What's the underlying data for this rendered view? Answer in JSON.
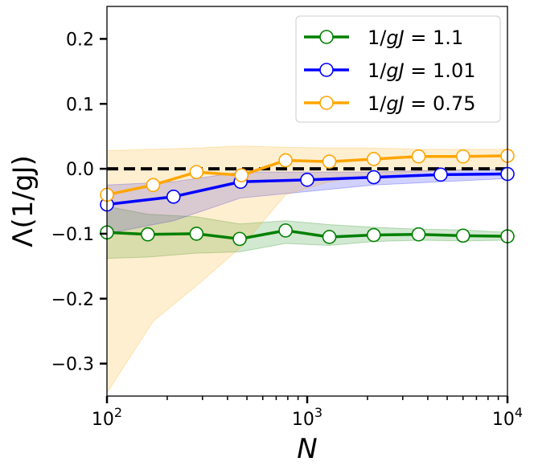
{
  "chart_data": {
    "type": "line",
    "title": "",
    "xlabel": "N",
    "ylabel": "Λ(1/gJ)",
    "x_scale": "log",
    "xlim": [
      100,
      10000
    ],
    "ylim": [
      -0.35,
      0.25
    ],
    "x_ticks": [
      100,
      1000,
      10000
    ],
    "x_tick_labels": [
      {
        "base": "10",
        "exp": "2"
      },
      {
        "base": "10",
        "exp": "3"
      },
      {
        "base": "10",
        "exp": "4"
      }
    ],
    "y_ticks": [
      0.2,
      0.1,
      0.0,
      -0.1,
      -0.2,
      -0.3
    ],
    "y_tick_labels": [
      "0.2",
      "0.1",
      "0.0",
      "−0.1",
      "−0.2",
      "−0.3"
    ],
    "grid": false,
    "legend_position": "top-right",
    "reference_line": {
      "y": 0.0,
      "style": "dashed",
      "color": "#000000"
    },
    "series": [
      {
        "name": "1/gJ = 1.1",
        "legend_parts": [
          "1/",
          "gJ",
          " = 1.1"
        ],
        "color": "#008000",
        "x": [
          100,
          160,
          280,
          460,
          780,
          1290,
          2150,
          3600,
          6000,
          10000
        ],
        "values": [
          -0.098,
          -0.101,
          -0.1,
          -0.108,
          -0.095,
          -0.105,
          -0.102,
          -0.101,
          -0.103,
          -0.104
        ],
        "band_upper": [
          -0.058,
          -0.07,
          -0.074,
          -0.085,
          -0.08,
          -0.086,
          -0.09,
          -0.093,
          -0.094,
          -0.098
        ],
        "band_lower": [
          -0.138,
          -0.136,
          -0.13,
          -0.128,
          -0.115,
          -0.118,
          -0.112,
          -0.11,
          -0.111,
          -0.11
        ]
      },
      {
        "name": "1/gJ = 1.01",
        "legend_parts": [
          "1/",
          "gJ",
          " = 1.01"
        ],
        "color": "#0000ff",
        "x": [
          100,
          215,
          465,
          1000,
          2150,
          4640,
          10000
        ],
        "values": [
          -0.055,
          -0.043,
          -0.02,
          -0.017,
          -0.013,
          -0.009,
          -0.008
        ],
        "band_upper": [
          -0.025,
          -0.02,
          -0.005,
          -0.005,
          -0.005,
          -0.002,
          -0.001
        ],
        "band_lower": [
          -0.1,
          -0.08,
          -0.045,
          -0.035,
          -0.025,
          -0.02,
          -0.015
        ]
      },
      {
        "name": "1/gJ = 0.75",
        "legend_parts": [
          "1/",
          "gJ",
          " = 0.75"
        ],
        "color": "#ffa500",
        "x": [
          100,
          170,
          280,
          470,
          780,
          1290,
          2150,
          3600,
          6000,
          10000
        ],
        "values": [
          -0.04,
          -0.025,
          -0.005,
          -0.01,
          0.013,
          0.011,
          0.015,
          0.019,
          0.019,
          0.02
        ],
        "band_upper": [
          0.028,
          0.03,
          0.032,
          0.035,
          0.033,
          0.032,
          0.032,
          0.03,
          0.03,
          0.03
        ],
        "band_lower": [
          -0.345,
          -0.235,
          -0.18,
          -0.12,
          -0.04,
          -0.02,
          -0.01,
          -0.005,
          -0.002,
          0.0
        ]
      }
    ]
  }
}
